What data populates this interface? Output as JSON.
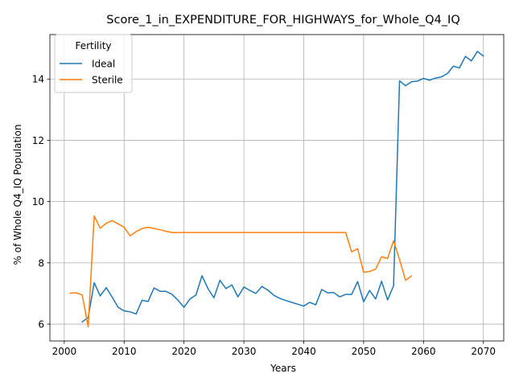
{
  "chart_data": {
    "type": "line",
    "title": "Score_1_in_EXPENDITURE_FOR_HIGHWAYS_for_Whole_Q4_IQ",
    "xlabel": "Years",
    "ylabel": "% of Whole Q4_IQ Population",
    "xlim": [
      1997.6,
      2073.4
    ],
    "ylim": [
      5.45,
      15.45
    ],
    "xticks": [
      2000,
      2010,
      2020,
      2030,
      2040,
      2050,
      2060,
      2070
    ],
    "yticks": [
      6,
      8,
      10,
      12,
      14
    ],
    "grid": true,
    "legend": {
      "title": "Fertility",
      "placement": "top-left"
    },
    "series": [
      {
        "name": "Ideal",
        "color": "#1f77b4",
        "x": [
          2003,
          2004,
          2005,
          2006,
          2007,
          2008,
          2009,
          2010,
          2011,
          2012,
          2013,
          2014,
          2015,
          2016,
          2017,
          2018,
          2019,
          2020,
          2021,
          2022,
          2023,
          2024,
          2025,
          2026,
          2027,
          2028,
          2029,
          2030,
          2031,
          2032,
          2033,
          2034,
          2035,
          2036,
          2037,
          2038,
          2039,
          2040,
          2041,
          2042,
          2043,
          2044,
          2045,
          2046,
          2047,
          2048,
          2049,
          2050,
          2051,
          2052,
          2053,
          2054,
          2055,
          2056,
          2057,
          2058,
          2059,
          2060,
          2061,
          2062,
          2063,
          2064,
          2065,
          2066,
          2067,
          2068,
          2069,
          2070
        ],
        "y": [
          6.07,
          6.22,
          7.35,
          6.92,
          7.19,
          6.88,
          6.55,
          6.43,
          6.4,
          6.33,
          6.78,
          6.74,
          7.18,
          7.07,
          7.07,
          6.97,
          6.78,
          6.55,
          6.82,
          6.95,
          7.58,
          7.16,
          6.86,
          7.43,
          7.16,
          7.28,
          6.89,
          7.21,
          7.1,
          7.0,
          7.23,
          7.11,
          6.94,
          6.84,
          6.77,
          6.71,
          6.65,
          6.59,
          6.71,
          6.63,
          7.13,
          7.02,
          7.03,
          6.89,
          6.97,
          6.97,
          7.39,
          6.73,
          7.1,
          6.82,
          7.4,
          6.79,
          7.25,
          13.94,
          13.78,
          13.91,
          13.93,
          14.02,
          13.96,
          14.03,
          14.07,
          14.18,
          14.42,
          14.36,
          14.74,
          14.59,
          14.9,
          14.75
        ]
      },
      {
        "name": "Sterile",
        "color": "#ff7f0e",
        "x": [
          2001,
          2002,
          2003,
          2004,
          2005,
          2006,
          2007,
          2008,
          2009,
          2010,
          2011,
          2012,
          2013,
          2014,
          2015,
          2016,
          2017,
          2018,
          2019,
          2020,
          2021,
          2022,
          2023,
          2024,
          2025,
          2026,
          2027,
          2028,
          2029,
          2030,
          2031,
          2032,
          2033,
          2034,
          2035,
          2036,
          2037,
          2038,
          2039,
          2040,
          2041,
          2042,
          2043,
          2044,
          2045,
          2046,
          2047,
          2048,
          2049,
          2050,
          2051,
          2052,
          2053,
          2054,
          2055,
          2056,
          2057,
          2058
        ],
        "y": [
          7.01,
          7.02,
          6.95,
          5.91,
          9.53,
          9.13,
          9.29,
          9.38,
          9.27,
          9.16,
          8.88,
          9.02,
          9.12,
          9.16,
          9.12,
          9.08,
          9.03,
          8.99,
          8.99,
          8.99,
          8.99,
          8.99,
          8.99,
          8.99,
          8.99,
          8.99,
          8.99,
          8.99,
          8.99,
          8.99,
          8.99,
          8.99,
          8.99,
          8.99,
          8.99,
          8.99,
          8.99,
          8.99,
          8.99,
          8.99,
          8.99,
          8.99,
          8.99,
          8.99,
          8.99,
          8.99,
          8.99,
          8.36,
          8.46,
          7.69,
          7.72,
          7.79,
          8.2,
          8.14,
          8.72,
          8.11,
          7.43,
          7.57
        ]
      }
    ]
  }
}
